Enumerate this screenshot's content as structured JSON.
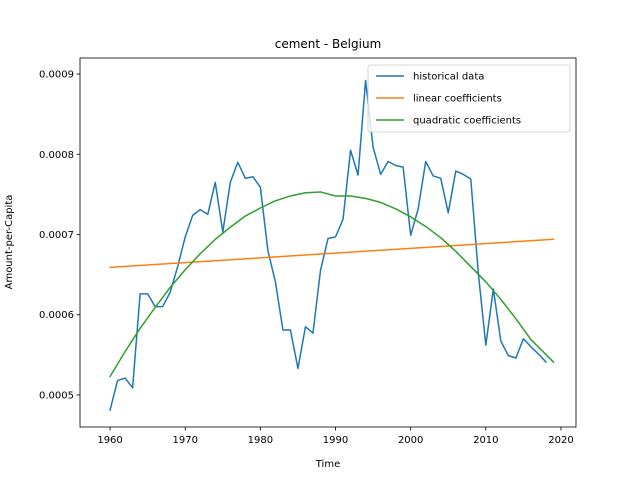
{
  "chart_data": {
    "type": "line",
    "title": "cement - Belgium",
    "xlabel": "Time",
    "ylabel": "Amount-per-Capita",
    "xlim": [
      1956,
      2022
    ],
    "ylim": [
      0.00046,
      0.00092
    ],
    "xticks": [
      1960,
      1970,
      1980,
      1990,
      2000,
      2010,
      2020
    ],
    "yticks": [
      0.0005,
      0.0006,
      0.0007,
      0.0008,
      0.0009
    ],
    "ytick_labels": [
      "0.0005",
      "0.0006",
      "0.0007",
      "0.0008",
      "0.0009"
    ],
    "grid": false,
    "legend": "top-right",
    "series": [
      {
        "name": "historical data",
        "color": "#1f77b4",
        "x": [
          1960,
          1961,
          1962,
          1963,
          1964,
          1965,
          1966,
          1967,
          1968,
          1969,
          1970,
          1971,
          1972,
          1973,
          1974,
          1975,
          1976,
          1977,
          1978,
          1979,
          1980,
          1981,
          1982,
          1983,
          1984,
          1985,
          1986,
          1987,
          1988,
          1989,
          1990,
          1991,
          1992,
          1993,
          1994,
          1995,
          1996,
          1997,
          1998,
          1999,
          2000,
          2001,
          2002,
          2003,
          2004,
          2005,
          2006,
          2007,
          2008,
          2009,
          2010,
          2011,
          2012,
          2013,
          2014,
          2015,
          2016,
          2017,
          2018
        ],
        "y": [
          0.000481,
          0.000518,
          0.000521,
          0.000509,
          0.000626,
          0.000626,
          0.00061,
          0.00061,
          0.000628,
          0.00066,
          0.000697,
          0.000724,
          0.000731,
          0.000725,
          0.000765,
          0.000703,
          0.000765,
          0.00079,
          0.00077,
          0.000772,
          0.000759,
          0.00068,
          0.000641,
          0.000581,
          0.000581,
          0.000533,
          0.000585,
          0.000577,
          0.000655,
          0.000695,
          0.000697,
          0.000719,
          0.000805,
          0.000774,
          0.000892,
          0.000809,
          0.000775,
          0.000791,
          0.000786,
          0.000784,
          0.000699,
          0.000732,
          0.000791,
          0.000773,
          0.00077,
          0.000727,
          0.000779,
          0.000775,
          0.000769,
          0.000652,
          0.000562,
          0.000632,
          0.000567,
          0.000549,
          0.000546,
          0.00057,
          0.00056,
          0.000551,
          0.000541
        ]
      },
      {
        "name": "linear coefficients",
        "color": "#ff7f0e",
        "x": [
          1960,
          2019
        ],
        "y": [
          0.000659,
          0.000694
        ]
      },
      {
        "name": "quadratic coefficients",
        "color": "#2ca02c",
        "x": [
          1960,
          1962,
          1964,
          1966,
          1968,
          1970,
          1972,
          1974,
          1976,
          1978,
          1980,
          1982,
          1984,
          1986,
          1988,
          1990,
          1992,
          1994,
          1996,
          1998,
          2000,
          2002,
          2004,
          2006,
          2008,
          2010,
          2012,
          2014,
          2016,
          2019
        ],
        "y": [
          0.000523,
          0.000554,
          0.000583,
          0.000609,
          0.000634,
          0.000656,
          0.000676,
          0.000694,
          0.000709,
          0.000723,
          0.000733,
          0.000742,
          0.000748,
          0.000752,
          0.000753,
          0.000748,
          0.000748,
          0.000745,
          0.00074,
          0.000732,
          0.000722,
          0.00071,
          0.000696,
          0.000679,
          0.00066,
          0.000641,
          0.000619,
          0.000595,
          0.000569,
          0.000541
        ]
      }
    ]
  }
}
